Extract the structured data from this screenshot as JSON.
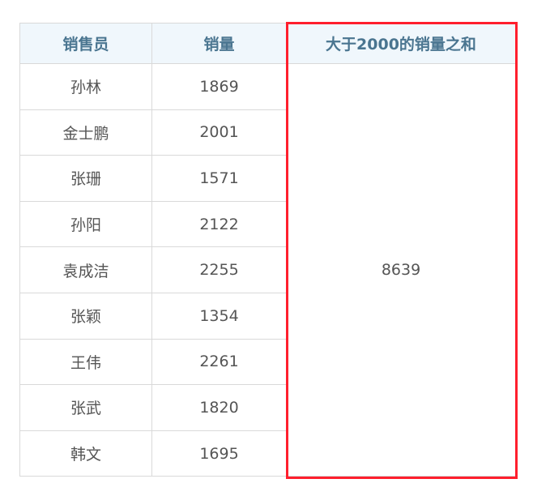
{
  "headers": [
    "销售员",
    "销量",
    "大于2000的销量之和"
  ],
  "rows": [
    [
      "孙林",
      "1869"
    ],
    [
      "金士鹏",
      "2001"
    ],
    [
      "张珊",
      "1571"
    ],
    [
      "孙阳",
      "2122"
    ],
    [
      "袁成洁",
      "2255"
    ],
    [
      "张颖",
      "1354"
    ],
    [
      "王伟",
      "2261"
    ],
    [
      "张武",
      "1820"
    ],
    [
      "韩文",
      "1695"
    ]
  ],
  "sum": "8639",
  "highlight_color": "#ff1f2d"
}
